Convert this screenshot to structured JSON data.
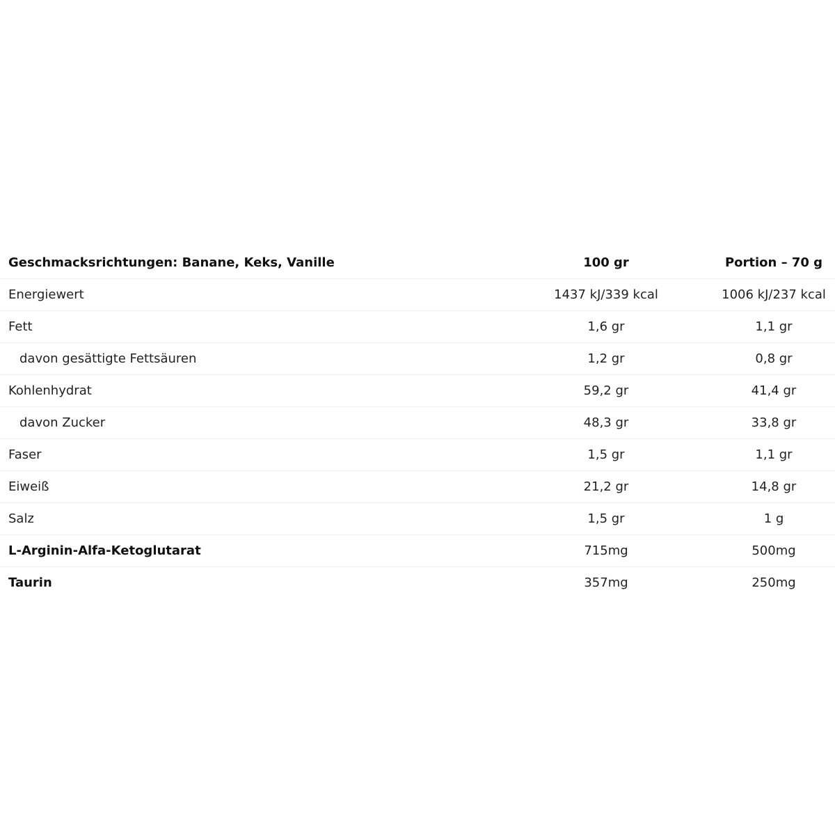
{
  "header": {
    "label": "Geschmacksrichtungen: Banane, Keks, Vanille",
    "col1": "100 gr",
    "col2": "Portion – 70 g"
  },
  "rows": [
    {
      "label": "Energiewert",
      "v100": "1437 kJ/339 kcal",
      "portion": "1006 kJ/237 kcal"
    },
    {
      "label": "Fett",
      "v100": "1,6 gr",
      "portion": "1,1 gr"
    },
    {
      "label": "davon gesättigte Fettsäuren",
      "v100": "1,2 gr",
      "portion": "0,8 gr"
    },
    {
      "label": "Kohlenhydrat",
      "v100": "59,2 gr",
      "portion": "41,4 gr"
    },
    {
      "label": "davon Zucker",
      "v100": "48,3 gr",
      "portion": "33,8 gr"
    },
    {
      "label": "Faser",
      "v100": "1,5 gr",
      "portion": "1,1 gr"
    },
    {
      "label": "Eiweiß",
      "v100": "21,2 gr",
      "portion": "14,8 gr"
    },
    {
      "label": "Salz",
      "v100": "1,5 gr",
      "portion": "1 g"
    },
    {
      "label": "L-Arginin-Alfa-Ketoglutarat",
      "v100": "715mg",
      "portion": "500mg"
    },
    {
      "label": "Taurin",
      "v100": "357mg",
      "portion": "250mg"
    }
  ]
}
